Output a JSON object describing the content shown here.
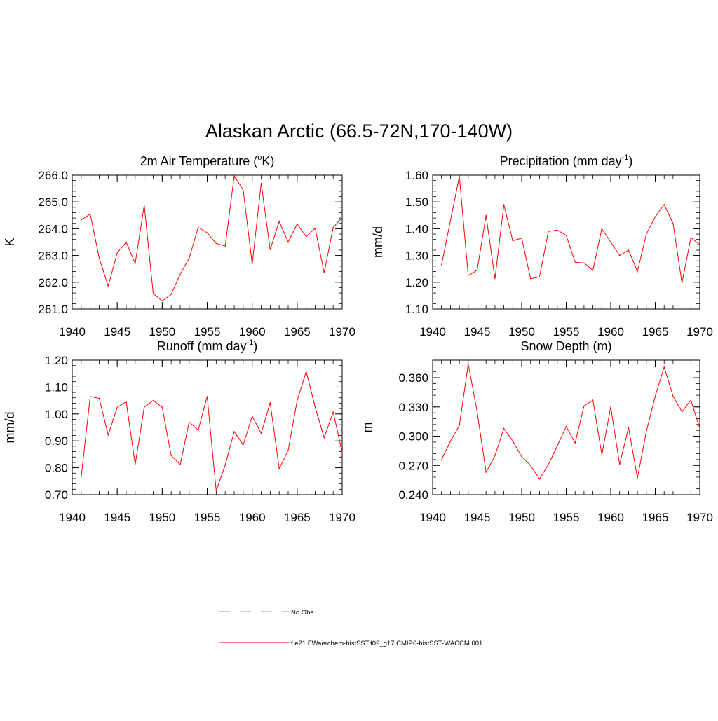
{
  "title": "Alaskan Arctic (66.5-72N,170-140W)",
  "colors": {
    "series": "#ff0000",
    "obs": "#9999dd",
    "axis": "#000000"
  },
  "legend": {
    "obs_label": "No Obs",
    "model_label": "f.e21.FWaerchem-histSST.f09_g17.CMIP6-histSST-WACCM.001"
  },
  "chart_data": [
    {
      "type": "line",
      "title_main": "2m Air Temperature (",
      "title_sup": "o",
      "title_tail": "K)",
      "ylabel": "K",
      "xlabel": "",
      "xlim": [
        1940,
        1970
      ],
      "ylim": [
        261.0,
        266.0
      ],
      "xticks": [
        1940,
        1945,
        1950,
        1955,
        1960,
        1965,
        1970
      ],
      "xtick_labels": [
        "1940",
        "1945",
        "1950",
        "1955",
        "1960",
        "1965",
        "1970"
      ],
      "yticks": [
        261.0,
        262.0,
        263.0,
        264.0,
        265.0,
        266.0
      ],
      "ytick_labels": [
        "261.0",
        "262.0",
        "263.0",
        "264.0",
        "265.0",
        "266.0"
      ],
      "yminor": 0.2,
      "x": [
        1941,
        1942,
        1943,
        1944,
        1945,
        1946,
        1947,
        1948,
        1949,
        1950,
        1951,
        1952,
        1953,
        1954,
        1955,
        1956,
        1957,
        1958,
        1959,
        1960,
        1961,
        1962,
        1963,
        1964,
        1965,
        1966,
        1967,
        1968,
        1969,
        1970
      ],
      "values": [
        264.33,
        264.55,
        262.9,
        261.85,
        263.1,
        263.5,
        262.7,
        264.88,
        261.58,
        261.3,
        261.55,
        262.3,
        262.9,
        264.05,
        263.85,
        263.45,
        263.35,
        265.97,
        265.45,
        262.68,
        265.7,
        263.22,
        264.27,
        263.5,
        264.18,
        263.7,
        264.02,
        262.35,
        264.05,
        264.42
      ]
    },
    {
      "type": "line",
      "title_main": "Precipitation (mm day",
      "title_sup": "-1",
      "title_tail": ")",
      "ylabel": "mm/d",
      "xlabel": "",
      "xlim": [
        1940,
        1970
      ],
      "ylim": [
        1.1,
        1.6
      ],
      "xticks": [
        1940,
        1945,
        1950,
        1955,
        1960,
        1965,
        1970
      ],
      "xtick_labels": [
        "1940",
        "1945",
        "1950",
        "1955",
        "1960",
        "1965",
        "1970"
      ],
      "yticks": [
        1.1,
        1.2,
        1.3,
        1.4,
        1.5,
        1.6
      ],
      "ytick_labels": [
        "1.10",
        "1.20",
        "1.30",
        "1.40",
        "1.50",
        "1.60"
      ],
      "yminor": 0.02,
      "x": [
        1941,
        1942,
        1943,
        1944,
        1945,
        1946,
        1947,
        1948,
        1949,
        1950,
        1951,
        1952,
        1953,
        1954,
        1955,
        1956,
        1957,
        1958,
        1959,
        1960,
        1961,
        1962,
        1963,
        1964,
        1965,
        1966,
        1967,
        1968,
        1969,
        1970
      ],
      "values": [
        1.265,
        1.43,
        1.595,
        1.225,
        1.245,
        1.45,
        1.213,
        1.49,
        1.355,
        1.365,
        1.213,
        1.22,
        1.39,
        1.395,
        1.375,
        1.275,
        1.272,
        1.245,
        1.4,
        1.35,
        1.3,
        1.32,
        1.24,
        1.38,
        1.445,
        1.49,
        1.42,
        1.197,
        1.367,
        1.34
      ]
    },
    {
      "type": "line",
      "title_main": "Runoff (mm day",
      "title_sup": "-1",
      "title_tail": ")",
      "ylabel": "mm/d",
      "xlabel": "",
      "xlim": [
        1940,
        1970
      ],
      "ylim": [
        0.7,
        1.2
      ],
      "xticks": [
        1940,
        1945,
        1950,
        1955,
        1960,
        1965,
        1970
      ],
      "xtick_labels": [
        "1940",
        "1945",
        "1950",
        "1955",
        "1960",
        "1965",
        "1970"
      ],
      "yticks": [
        0.7,
        0.8,
        0.9,
        1.0,
        1.1,
        1.2
      ],
      "ytick_labels": [
        "0.70",
        "0.80",
        "0.90",
        "1.00",
        "1.10",
        "1.20"
      ],
      "yminor": 0.02,
      "x": [
        1941,
        1942,
        1943,
        1944,
        1945,
        1946,
        1947,
        1948,
        1949,
        1950,
        1951,
        1952,
        1953,
        1954,
        1955,
        1956,
        1957,
        1958,
        1959,
        1960,
        1961,
        1962,
        1963,
        1964,
        1965,
        1966,
        1967,
        1968,
        1969,
        1970
      ],
      "values": [
        0.765,
        1.065,
        1.058,
        0.922,
        1.025,
        1.045,
        0.812,
        1.025,
        1.05,
        1.025,
        0.845,
        0.812,
        0.97,
        0.94,
        1.065,
        0.715,
        0.81,
        0.935,
        0.885,
        0.992,
        0.928,
        1.042,
        0.797,
        0.865,
        1.05,
        1.158,
        1.025,
        0.912,
        1.007,
        0.858
      ]
    },
    {
      "type": "line",
      "title_main": "Snow Depth (m)",
      "title_sup": "",
      "title_tail": "",
      "ylabel": "m",
      "xlabel": "",
      "xlim": [
        1940,
        1970
      ],
      "ylim": [
        0.24,
        0.378
      ],
      "xticks": [
        1940,
        1945,
        1950,
        1955,
        1960,
        1965,
        1970
      ],
      "xtick_labels": [
        "1940",
        "1945",
        "1950",
        "1955",
        "1960",
        "1965",
        "1970"
      ],
      "yticks": [
        0.24,
        0.27,
        0.3,
        0.33,
        0.36
      ],
      "ytick_labels": [
        "0.240",
        "0.270",
        "0.300",
        "0.330",
        "0.360"
      ],
      "yminor": 0.006,
      "x": [
        1941,
        1942,
        1943,
        1944,
        1945,
        1946,
        1947,
        1948,
        1949,
        1950,
        1951,
        1952,
        1953,
        1954,
        1955,
        1956,
        1957,
        1958,
        1959,
        1960,
        1961,
        1962,
        1963,
        1964,
        1965,
        1966,
        1967,
        1968,
        1969,
        1970
      ],
      "values": [
        0.276,
        0.295,
        0.311,
        0.374,
        0.325,
        0.263,
        0.28,
        0.308,
        0.295,
        0.279,
        0.27,
        0.256,
        0.271,
        0.29,
        0.31,
        0.293,
        0.331,
        0.337,
        0.281,
        0.33,
        0.271,
        0.309,
        0.257,
        0.305,
        0.341,
        0.371,
        0.341,
        0.325,
        0.337,
        0.308
      ]
    }
  ]
}
